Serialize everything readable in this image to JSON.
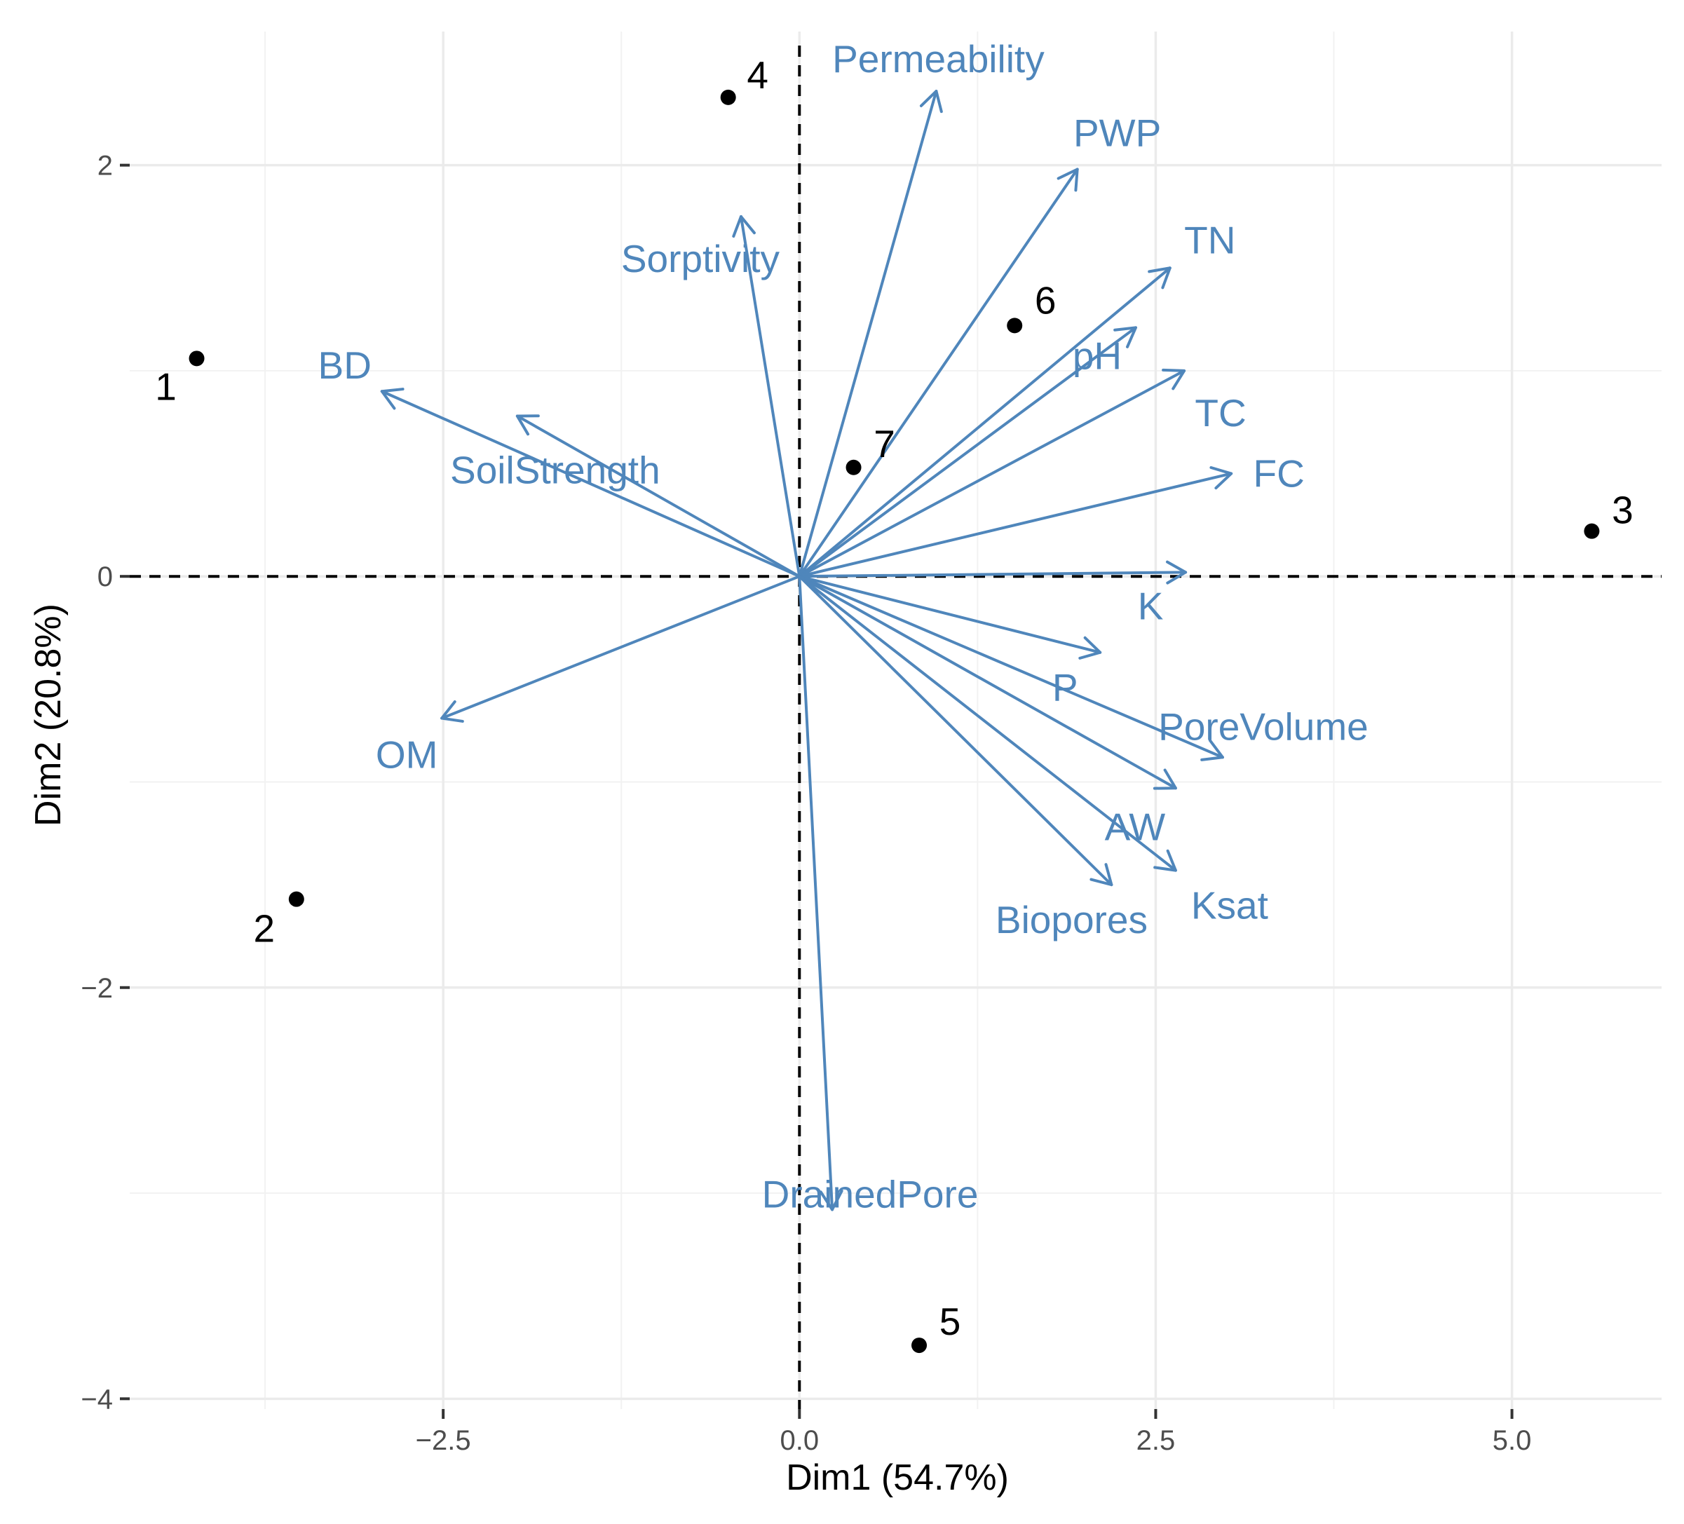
{
  "chart_data": {
    "type": "scatter",
    "subtype": "pca-biplot",
    "title": "",
    "xlabel": "Dim1 (54.7%)",
    "ylabel": "Dim2 (20.8%)",
    "xlim": [
      -4.7,
      6.05
    ],
    "ylim": [
      -4.05,
      2.65
    ],
    "x_major_ticks": [
      -2.5,
      0.0,
      2.5,
      5.0
    ],
    "x_tick_labels": [
      "−2.5",
      "0.0",
      "2.5",
      "5.0"
    ],
    "x_minor_ticks": [
      -3.75,
      -1.25,
      1.25,
      3.75
    ],
    "y_major_ticks": [
      -4,
      -2,
      0,
      2
    ],
    "y_tick_labels": [
      "−4",
      "−2",
      "0",
      "2"
    ],
    "y_minor_ticks": [
      -3,
      -1,
      1
    ],
    "grid": true,
    "reference_lines": {
      "x": 0,
      "y": 0,
      "style": "dashed"
    },
    "colors": {
      "variables": "#4f86bb",
      "observations": "#000000",
      "reference": "#000000",
      "grid": "#ebebeb"
    },
    "observations": [
      {
        "label": "1",
        "x": -4.23,
        "y": 1.06
      },
      {
        "label": "2",
        "x": -3.53,
        "y": -1.57
      },
      {
        "label": "3",
        "x": 5.56,
        "y": 0.22
      },
      {
        "label": "4",
        "x": -0.5,
        "y": 2.33
      },
      {
        "label": "5",
        "x": 0.84,
        "y": -3.74
      },
      {
        "label": "6",
        "x": 1.51,
        "y": 1.22
      },
      {
        "label": "7",
        "x": 0.38,
        "y": 0.53
      }
    ],
    "variables": [
      {
        "name": "Permeability",
        "x": 0.96,
        "y": 2.36
      },
      {
        "name": "PWP",
        "x": 1.95,
        "y": 1.98
      },
      {
        "name": "Sorptivity",
        "x": -0.41,
        "y": 1.75
      },
      {
        "name": "TN",
        "x": 2.6,
        "y": 1.5
      },
      {
        "name": "pH",
        "x": 2.36,
        "y": 1.21
      },
      {
        "name": "BD",
        "x": -2.93,
        "y": 0.9
      },
      {
        "name": "TC",
        "x": 2.7,
        "y": 1.0
      },
      {
        "name": "SoilStrength",
        "x": -1.98,
        "y": 0.78
      },
      {
        "name": "FC",
        "x": 3.03,
        "y": 0.5
      },
      {
        "name": "K",
        "x": 2.71,
        "y": 0.02
      },
      {
        "name": "P",
        "x": 2.11,
        "y": -0.37
      },
      {
        "name": "PoreVolume",
        "x": 2.97,
        "y": -0.88
      },
      {
        "name": "OM",
        "x": -2.51,
        "y": -0.69
      },
      {
        "name": "AW",
        "x": 2.64,
        "y": -1.03
      },
      {
        "name": "Ksat",
        "x": 2.64,
        "y": -1.43
      },
      {
        "name": "Biopores",
        "x": 2.19,
        "y": -1.5
      },
      {
        "name": "DrainedPore",
        "x": 0.23,
        "y": -3.08
      }
    ]
  }
}
